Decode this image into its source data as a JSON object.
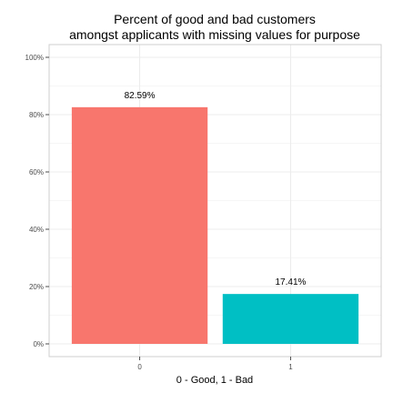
{
  "chart_data": {
    "type": "bar",
    "title_lines": [
      "Percent of good and bad customers",
      "amongst applicants with missing values for purpose"
    ],
    "xlabel": "0 - Good, 1 - Bad",
    "ylabel": "",
    "categories": [
      "0",
      "1"
    ],
    "values": [
      82.59,
      17.41
    ],
    "value_labels": [
      "82.59%",
      "17.41%"
    ],
    "bar_colors": [
      "#F8766D",
      "#00BFC4"
    ],
    "ylim": [
      0,
      100
    ],
    "yticks": [
      0,
      20,
      40,
      60,
      80,
      100
    ],
    "ytick_labels": [
      "0%",
      "20%",
      "40%",
      "60%",
      "80%",
      "100%"
    ],
    "grid": true,
    "legend": "none"
  }
}
